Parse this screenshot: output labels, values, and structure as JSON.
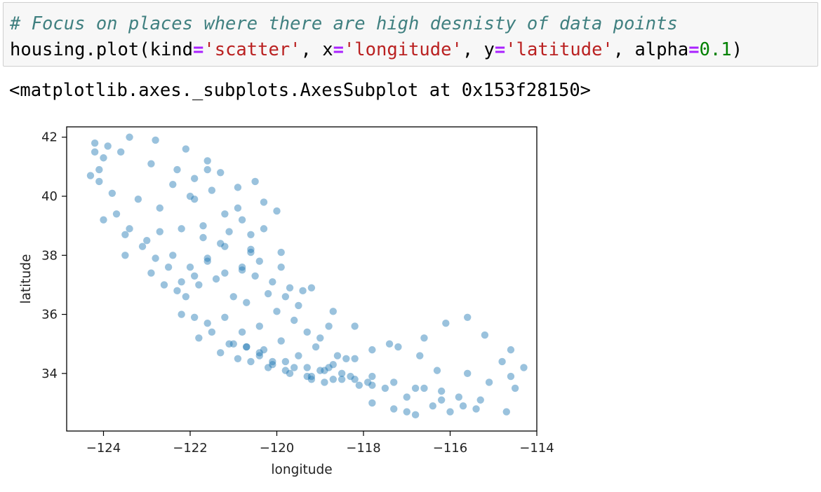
{
  "cell": {
    "comment": "# Focus on places where there are high desnisty of data points",
    "code": {
      "prefix": "housing.plot(kind",
      "eq": "=",
      "kind": "'scatter'",
      "x_part": ", x",
      "x": "'longitude'",
      "y_part": ", y",
      "y": "'latitude'",
      "alpha_part": ", alpha",
      "alpha": "0.1",
      "close": ")"
    }
  },
  "output": {
    "repr": "<matplotlib.axes._subplots.AxesSubplot at 0x153f28150>"
  },
  "chart_data": {
    "type": "scatter",
    "title": "",
    "xlabel": "longitude",
    "ylabel": "latitude",
    "xlim": [
      -124.85,
      -114.0
    ],
    "ylim": [
      32.05,
      42.35
    ],
    "xticks": [
      -124,
      -122,
      -120,
      -118,
      -116,
      -114
    ],
    "xtick_labels": [
      "−124",
      "−122",
      "−120",
      "−118",
      "−116",
      "−114"
    ],
    "yticks": [
      34,
      36,
      38,
      40,
      42
    ],
    "ytick_labels": [
      "34",
      "36",
      "38",
      "40",
      "42"
    ],
    "grid": false,
    "alpha": 0.1,
    "color": "#1f77b4",
    "x": [
      -124.2,
      -124.3,
      -124.1,
      -123.8,
      -123.2,
      -122.4,
      -121.9,
      -121.5,
      -121.3,
      -121.6,
      -120.9,
      -120.5,
      -120.3,
      -120.0,
      -124.0,
      -123.6,
      -122.9,
      -122.3,
      -122.1,
      -121.9,
      -121.2,
      -121.7,
      -120.8,
      -120.6,
      -123.7,
      -123.4,
      -123.0,
      -122.7,
      -122.2,
      -121.7,
      -121.3,
      -120.3,
      -120.6,
      -123.5,
      -123.1,
      -122.8,
      -122.4,
      -122.0,
      -121.6,
      -121.2,
      -120.8,
      -120.4,
      -119.9,
      -122.9,
      -122.5,
      -122.2,
      -121.9,
      -121.6,
      -121.2,
      -120.8,
      -120.5,
      -120.1,
      -119.7,
      -122.6,
      -122.3,
      -122.1,
      -121.8,
      -121.4,
      -121.0,
      -120.7,
      -120.2,
      -119.8,
      -119.5,
      -119.2,
      -122.2,
      -121.9,
      -121.6,
      -121.2,
      -120.8,
      -120.4,
      -120.0,
      -119.6,
      -119.3,
      -119.0,
      -121.8,
      -121.5,
      -121.1,
      -120.7,
      -120.3,
      -119.9,
      -119.5,
      -119.1,
      -118.8,
      -118.6,
      -121.3,
      -120.9,
      -120.4,
      -120.1,
      -119.8,
      -119.3,
      -119.0,
      -118.7,
      -118.4,
      -121.0,
      -120.7,
      -120.4,
      -120.1,
      -119.6,
      -119.2,
      -118.9,
      -118.5,
      -118.2,
      -117.8,
      -120.6,
      -120.2,
      -119.8,
      -119.3,
      -118.9,
      -118.5,
      -118.1,
      -117.8,
      -117.3,
      -116.8,
      -119.7,
      -119.2,
      -118.7,
      -118.3,
      -117.9,
      -117.5,
      -117.0,
      -116.6,
      -116.2,
      -115.8,
      -118.8,
      -118.2,
      -117.8,
      -117.2,
      -116.6,
      -116.1,
      -115.6,
      -115.2,
      -117.8,
      -117.3,
      -116.8,
      -116.2,
      -115.7,
      -115.3,
      -114.7,
      -114.6,
      -114.3,
      -114.5,
      -115.4,
      -116.0,
      -116.4,
      -117.0,
      -123.9,
      -123.4,
      -122.8,
      -124.2,
      -124.1,
      -124.0,
      -123.5,
      -122.7,
      -122.0,
      -121.6,
      -120.9,
      -121.1,
      -120.6,
      -119.9,
      -119.4,
      -118.7,
      -118.2,
      -117.4,
      -116.7,
      -116.3,
      -115.6,
      -115.1,
      -114.8,
      -114.6
    ],
    "y": [
      41.8,
      40.7,
      40.9,
      40.1,
      39.9,
      40.4,
      40.6,
      40.2,
      40.8,
      41.2,
      40.3,
      40.5,
      39.8,
      39.5,
      41.3,
      41.5,
      41.1,
      40.9,
      41.6,
      39.9,
      39.4,
      39.0,
      39.2,
      38.7,
      39.4,
      38.9,
      38.5,
      38.8,
      38.9,
      38.6,
      38.4,
      38.9,
      38.2,
      38.0,
      38.3,
      37.9,
      38.0,
      37.6,
      37.9,
      38.3,
      37.6,
      37.8,
      38.1,
      37.4,
      37.6,
      37.1,
      37.3,
      37.8,
      37.4,
      37.5,
      37.3,
      37.1,
      36.9,
      37.0,
      36.8,
      36.6,
      37.0,
      37.2,
      36.6,
      36.4,
      36.7,
      36.6,
      36.3,
      36.9,
      36.0,
      35.9,
      35.7,
      35.9,
      35.4,
      35.6,
      36.1,
      35.8,
      35.4,
      35.2,
      35.2,
      35.4,
      35.0,
      34.9,
      34.8,
      35.1,
      34.6,
      34.9,
      35.6,
      34.6,
      34.7,
      34.5,
      34.6,
      34.3,
      34.4,
      34.2,
      34.1,
      34.3,
      34.5,
      35.0,
      34.9,
      34.7,
      34.4,
      34.2,
      33.9,
      34.1,
      34.0,
      33.8,
      33.6,
      34.4,
      34.2,
      34.1,
      33.9,
      33.7,
      33.8,
      33.6,
      33.9,
      33.7,
      33.5,
      34.0,
      33.8,
      33.8,
      33.9,
      33.7,
      33.5,
      33.2,
      33.5,
      33.4,
      33.2,
      34.2,
      34.5,
      34.8,
      34.9,
      35.2,
      35.7,
      35.9,
      35.3,
      33.0,
      32.8,
      32.6,
      33.1,
      32.9,
      33.1,
      32.7,
      33.9,
      34.2,
      33.5,
      32.8,
      32.7,
      32.9,
      32.7,
      41.7,
      42.0,
      41.9,
      41.5,
      40.5,
      39.2,
      38.7,
      39.6,
      40.0,
      40.9,
      39.6,
      38.8,
      38.1,
      37.6,
      36.8,
      36.1,
      35.6,
      35.0,
      34.6,
      34.1,
      34.0,
      33.7,
      34.4,
      34.8
    ]
  }
}
